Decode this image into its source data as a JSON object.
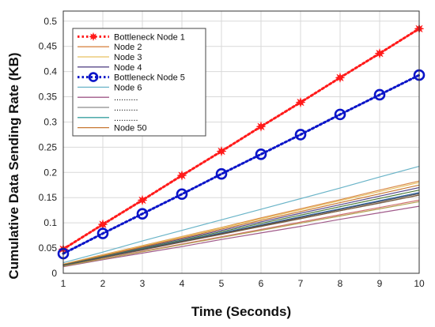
{
  "chart_data": {
    "type": "line",
    "xlabel": "Time (Seconds)",
    "ylabel": "Cumulative Data Sending Rate (KB)",
    "xlim": [
      1,
      10
    ],
    "ylim": [
      0,
      0.52
    ],
    "xticks": [
      1,
      2,
      3,
      4,
      5,
      6,
      7,
      8,
      9,
      10
    ],
    "yticks": [
      0,
      0.05,
      0.1,
      0.15,
      0.2,
      0.25,
      0.3,
      0.35,
      0.4,
      0.45,
      0.5
    ],
    "ytick_labels": [
      "0",
      "0.05",
      "0.1",
      "0.15",
      "0.2",
      "0.25",
      "0.3",
      "0.35",
      "0.4",
      "0.45",
      "0.5"
    ],
    "grid": true,
    "legend_position": "top-left",
    "x": [
      1,
      2,
      3,
      4,
      5,
      6,
      7,
      8,
      9,
      10
    ],
    "series": [
      {
        "name": "Bottleneck Node 1",
        "color": "#ff1a1a",
        "style": "dotted",
        "marker": "star",
        "in_legend": true,
        "values": [
          0.048,
          0.097,
          0.145,
          0.194,
          0.242,
          0.291,
          0.339,
          0.388,
          0.436,
          0.485
        ]
      },
      {
        "name": "Node 2",
        "color": "#d98a4a",
        "style": "solid",
        "marker": "none",
        "in_legend": true,
        "values": [
          0.018,
          0.037,
          0.055,
          0.073,
          0.091,
          0.11,
          0.128,
          0.146,
          0.165,
          0.183
        ]
      },
      {
        "name": "Node 3",
        "color": "#e8c060",
        "style": "solid",
        "marker": "none",
        "in_legend": true,
        "values": [
          0.018,
          0.036,
          0.054,
          0.072,
          0.09,
          0.108,
          0.126,
          0.144,
          0.162,
          0.18
        ]
      },
      {
        "name": "Node 4",
        "color": "#5a4a8a",
        "style": "solid",
        "marker": "none",
        "in_legend": true,
        "values": [
          0.017,
          0.034,
          0.051,
          0.068,
          0.085,
          0.102,
          0.119,
          0.136,
          0.153,
          0.17
        ]
      },
      {
        "name": "Bottleneck Node 5",
        "color": "#0a14c8",
        "style": "dotted",
        "marker": "circle",
        "in_legend": true,
        "values": [
          0.039,
          0.079,
          0.118,
          0.157,
          0.197,
          0.236,
          0.275,
          0.315,
          0.354,
          0.393
        ]
      },
      {
        "name": "Node 6",
        "color": "#6ab4c8",
        "style": "solid",
        "marker": "none",
        "in_legend": true,
        "values": [
          0.021,
          0.042,
          0.064,
          0.085,
          0.106,
          0.127,
          0.148,
          0.169,
          0.191,
          0.212
        ]
      },
      {
        "name": "..........",
        "color": "#a05a8a",
        "style": "solid",
        "marker": "none",
        "in_legend": true,
        "values": [
          0.013,
          0.027,
          0.04,
          0.053,
          0.067,
          0.08,
          0.093,
          0.107,
          0.12,
          0.133
        ]
      },
      {
        "name": "..........",
        "color": "#8c8c8c",
        "style": "solid",
        "marker": "none",
        "in_legend": true,
        "values": [
          0.015,
          0.031,
          0.046,
          0.062,
          0.077,
          0.093,
          0.108,
          0.124,
          0.139,
          0.155
        ]
      },
      {
        "name": "..........",
        "color": "#3aa0a0",
        "style": "solid",
        "marker": "none",
        "in_legend": true,
        "values": [
          0.016,
          0.032,
          0.048,
          0.064,
          0.08,
          0.096,
          0.112,
          0.128,
          0.144,
          0.16
        ]
      },
      {
        "name": "Node 50",
        "color": "#c87832",
        "style": "solid",
        "marker": "none",
        "in_legend": true,
        "values": [
          0.0175,
          0.035,
          0.0525,
          0.07,
          0.0875,
          0.105,
          0.1225,
          0.14,
          0.1575,
          0.175
        ]
      },
      {
        "color": "#4a7a3a",
        "style": "solid",
        "marker": "none",
        "in_legend": false,
        "values": [
          0.0165,
          0.033,
          0.0495,
          0.066,
          0.0825,
          0.099,
          0.1155,
          0.132,
          0.1485,
          0.165
        ]
      },
      {
        "color": "#d07070",
        "style": "solid",
        "marker": "none",
        "in_legend": false,
        "values": [
          0.0145,
          0.029,
          0.0435,
          0.058,
          0.0725,
          0.087,
          0.1015,
          0.116,
          0.1305,
          0.145
        ]
      },
      {
        "color": "#7a5a3a",
        "style": "solid",
        "marker": "none",
        "in_legend": false,
        "values": [
          0.0155,
          0.031,
          0.0465,
          0.062,
          0.0775,
          0.093,
          0.1085,
          0.124,
          0.1395,
          0.155
        ]
      },
      {
        "color": "#3a6ab4",
        "style": "solid",
        "marker": "none",
        "in_legend": false,
        "values": [
          0.016,
          0.032,
          0.048,
          0.064,
          0.08,
          0.096,
          0.112,
          0.128,
          0.144,
          0.16
        ]
      },
      {
        "color": "#b4a050",
        "style": "solid",
        "marker": "none",
        "in_legend": false,
        "values": [
          0.0142,
          0.0284,
          0.0426,
          0.0568,
          0.071,
          0.0852,
          0.0994,
          0.1136,
          0.1278,
          0.142
        ]
      },
      {
        "color": "#505050",
        "style": "solid",
        "marker": "none",
        "in_legend": false,
        "values": [
          0.0158,
          0.0316,
          0.0474,
          0.0632,
          0.079,
          0.0948,
          0.1106,
          0.1264,
          0.1422,
          0.158
        ]
      }
    ]
  }
}
